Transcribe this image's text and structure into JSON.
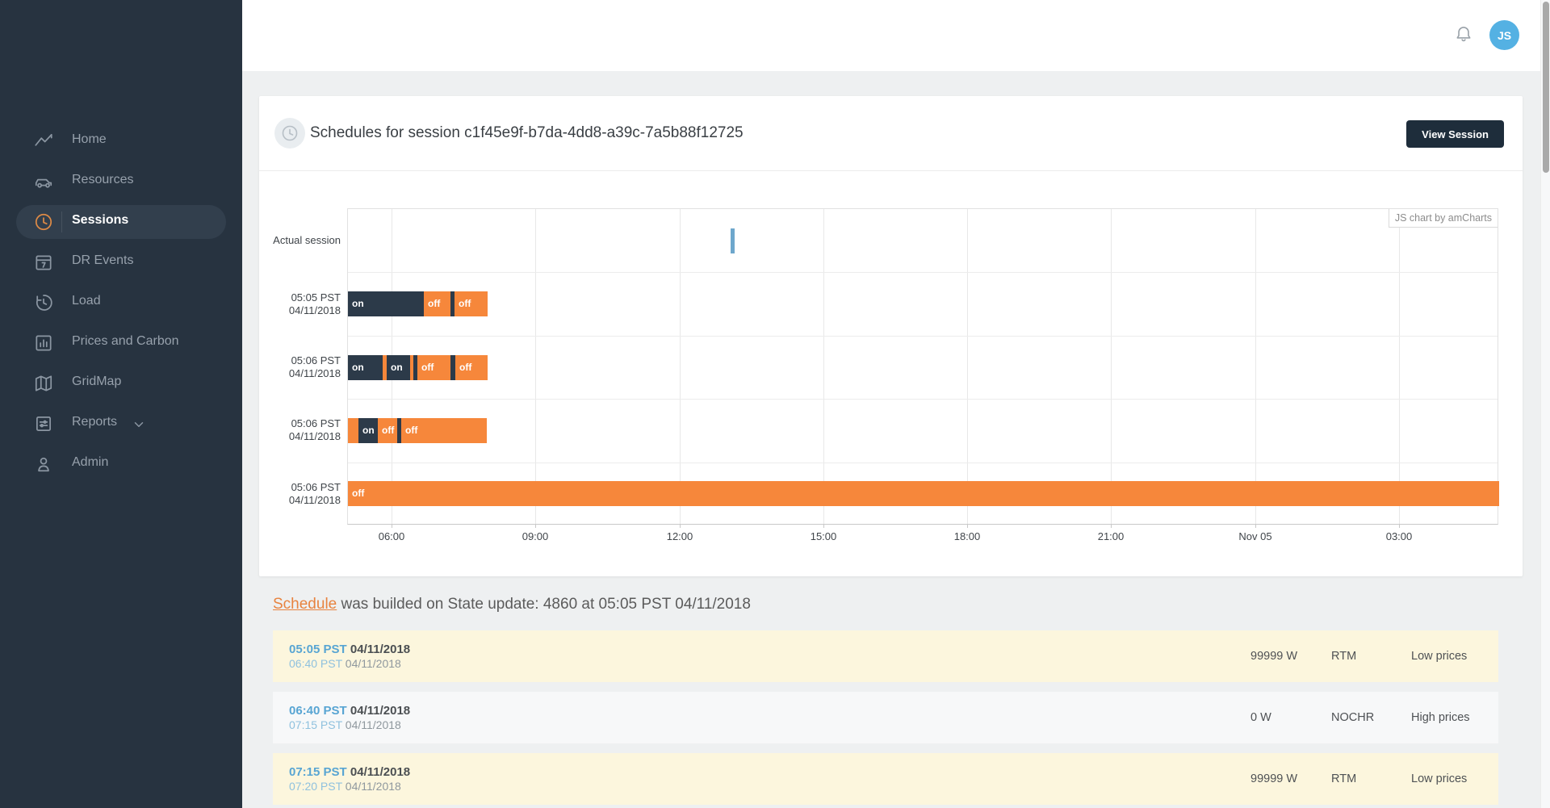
{
  "topbar": {
    "avatar_initials": "JS"
  },
  "sidebar": {
    "items": [
      {
        "label": "Home",
        "icon": "trend-icon",
        "active": false,
        "has_chevron": false
      },
      {
        "label": "Resources",
        "icon": "car-icon",
        "active": false,
        "has_chevron": false
      },
      {
        "label": "Sessions",
        "icon": "clock-icon",
        "active": true,
        "has_chevron": false
      },
      {
        "label": "DR Events",
        "icon": "calendar-icon",
        "active": false,
        "has_chevron": false
      },
      {
        "label": "Load",
        "icon": "history-icon",
        "active": false,
        "has_chevron": false
      },
      {
        "label": "Prices and Carbon",
        "icon": "bar-chart-icon",
        "active": false,
        "has_chevron": false
      },
      {
        "label": "GridMap",
        "icon": "map-icon",
        "active": false,
        "has_chevron": false
      },
      {
        "label": "Reports",
        "icon": "report-icon",
        "active": false,
        "has_chevron": true
      },
      {
        "label": "Admin",
        "icon": "user-icon",
        "active": false,
        "has_chevron": false
      }
    ]
  },
  "card": {
    "title": "Schedules for session c1f45e9f-b7da-4dd8-a39c-7a5b88f12725",
    "view_session_label": "View Session",
    "watermark": "JS chart by amCharts"
  },
  "chart_data": {
    "type": "gantt",
    "colors": {
      "on": "#2c3a49",
      "off": "#f6873b",
      "actual": "#6ea7cc"
    },
    "x_ticks": [
      {
        "label": "06:00",
        "pos": 0.0379
      },
      {
        "label": "09:00",
        "pos": 0.1629
      },
      {
        "label": "12:00",
        "pos": 0.2879
      },
      {
        "label": "15:00",
        "pos": 0.4129
      },
      {
        "label": "18:00",
        "pos": 0.5379
      },
      {
        "label": "21:00",
        "pos": 0.6629
      },
      {
        "label": "Nov 05",
        "pos": 0.7879
      },
      {
        "label": "03:00",
        "pos": 0.9129
      }
    ],
    "rows": [
      {
        "label_lines": [
          "Actual session"
        ],
        "segments": [
          {
            "from": 0.3324,
            "to": 0.3359,
            "state": "blue",
            "label": ""
          }
        ]
      },
      {
        "label_lines": [
          "05:05 PST",
          "04/11/2018"
        ],
        "segments": [
          {
            "from": 0.0,
            "to": 0.0659,
            "state": "dark",
            "label": "on"
          },
          {
            "from": 0.0659,
            "to": 0.0891,
            "state": "orange",
            "label": "off"
          },
          {
            "from": 0.0891,
            "to": 0.0926,
            "state": "dark",
            "label": ""
          },
          {
            "from": 0.0926,
            "to": 0.1213,
            "state": "orange",
            "label": "off"
          }
        ]
      },
      {
        "label_lines": [
          "05:06 PST",
          "04/11/2018"
        ],
        "segments": [
          {
            "from": 0.0,
            "to": 0.0302,
            "state": "dark",
            "label": "on"
          },
          {
            "from": 0.0302,
            "to": 0.0337,
            "state": "orange",
            "label": ""
          },
          {
            "from": 0.0337,
            "to": 0.054,
            "state": "dark",
            "label": "on"
          },
          {
            "from": 0.054,
            "to": 0.0568,
            "state": "orange",
            "label": ""
          },
          {
            "from": 0.0568,
            "to": 0.0603,
            "state": "dark",
            "label": ""
          },
          {
            "from": 0.0603,
            "to": 0.0891,
            "state": "orange",
            "label": "off"
          },
          {
            "from": 0.0891,
            "to": 0.0933,
            "state": "dark",
            "label": ""
          },
          {
            "from": 0.0933,
            "to": 0.1213,
            "state": "orange",
            "label": "off"
          }
        ]
      },
      {
        "label_lines": [
          "05:06 PST",
          "04/11/2018"
        ],
        "segments": [
          {
            "from": 0.0,
            "to": 0.0091,
            "state": "orange",
            "label": ""
          },
          {
            "from": 0.0091,
            "to": 0.0259,
            "state": "dark",
            "label": "on"
          },
          {
            "from": 0.0259,
            "to": 0.0428,
            "state": "orange",
            "label": "off"
          },
          {
            "from": 0.0428,
            "to": 0.0463,
            "state": "dark",
            "label": ""
          },
          {
            "from": 0.0463,
            "to": 0.1206,
            "state": "orange",
            "label": "off"
          }
        ]
      },
      {
        "label_lines": [
          "05:06 PST",
          "04/11/2018"
        ],
        "segments": [
          {
            "from": 0.0,
            "to": 1.0,
            "state": "orange",
            "label": "off"
          }
        ]
      }
    ]
  },
  "note": {
    "link_text": "Schedule",
    "rest_text": " was builded on State update: 4860 at 05:05 PST 04/11/2018"
  },
  "table": {
    "rows": [
      {
        "start_time": "05:05 PST",
        "start_date": "04/11/2018",
        "end_time": "06:40 PST",
        "end_date": "04/11/2018",
        "power": "99999 W",
        "market": "RTM",
        "prices": "Low prices",
        "highlight": true
      },
      {
        "start_time": "06:40 PST",
        "start_date": "04/11/2018",
        "end_time": "07:15 PST",
        "end_date": "04/11/2018",
        "power": "0 W",
        "market": "NOCHR",
        "prices": "High prices",
        "highlight": false
      },
      {
        "start_time": "07:15 PST",
        "start_date": "04/11/2018",
        "end_time": "07:20 PST",
        "end_date": "04/11/2018",
        "power": "99999 W",
        "market": "RTM",
        "prices": "Low prices",
        "highlight": true
      }
    ]
  }
}
